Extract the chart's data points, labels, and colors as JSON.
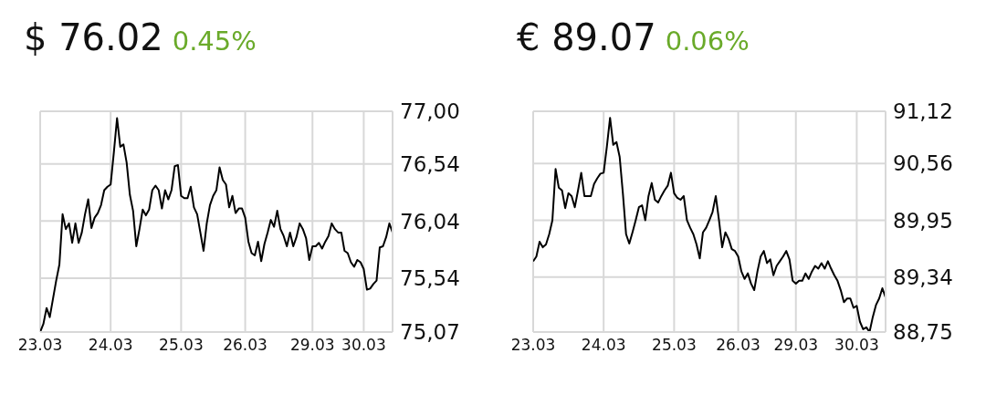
{
  "chart_data": [
    {
      "type": "line",
      "title": "$ 76.02",
      "subtitle": "0.45%",
      "grid": true,
      "categories": [
        "23.03",
        null,
        null,
        null,
        null,
        null,
        null,
        null,
        null,
        null,
        null,
        null,
        null,
        null,
        null,
        null,
        null,
        null,
        null,
        null,
        null,
        null,
        "24.03",
        null,
        null,
        null,
        null,
        null,
        null,
        null,
        null,
        null,
        null,
        null,
        null,
        null,
        null,
        null,
        null,
        null,
        null,
        null,
        null,
        null,
        "25.03",
        null,
        null,
        null,
        null,
        null,
        null,
        null,
        null,
        null,
        null,
        null,
        null,
        null,
        null,
        null,
        null,
        null,
        null,
        null,
        "26.03",
        null,
        null,
        null,
        null,
        null,
        null,
        null,
        null,
        null,
        null,
        null,
        null,
        null,
        null,
        null,
        null,
        null,
        null,
        null,
        null,
        "29.03",
        null,
        null,
        null,
        null,
        null,
        null,
        null,
        null,
        null,
        null,
        null,
        null,
        null,
        null,
        null,
        "30.03",
        null,
        null,
        null,
        null,
        null,
        null,
        null,
        null,
        null
      ],
      "ylim": [
        75.07,
        77.0
      ],
      "yticks": [
        {
          "value": 75.07,
          "label": "75,07"
        },
        {
          "value": 75.54,
          "label": "75,54"
        },
        {
          "value": 76.04,
          "label": "76,04"
        },
        {
          "value": 76.54,
          "label": "76,54"
        },
        {
          "value": 77.0,
          "label": "77,00"
        }
      ],
      "series": [
        {
          "color": "#000000",
          "values": [
            75.07,
            75.14,
            75.28,
            75.2,
            75.36,
            75.52,
            75.66,
            76.1,
            75.97,
            76.02,
            75.85,
            76.02,
            75.85,
            75.94,
            76.1,
            76.23,
            75.98,
            76.07,
            76.11,
            76.18,
            76.31,
            76.34,
            76.36,
            76.64,
            76.94,
            76.69,
            76.71,
            76.55,
            76.27,
            76.13,
            75.82,
            75.97,
            76.14,
            76.09,
            76.14,
            76.31,
            76.35,
            76.31,
            76.15,
            76.31,
            76.23,
            76.31,
            76.52,
            76.53,
            76.26,
            76.24,
            76.24,
            76.34,
            76.16,
            76.1,
            75.94,
            75.78,
            76.02,
            76.18,
            76.26,
            76.31,
            76.51,
            76.4,
            76.36,
            76.16,
            76.26,
            76.11,
            76.15,
            76.15,
            76.07,
            75.86,
            75.76,
            75.74,
            75.86,
            75.69,
            75.84,
            75.94,
            76.05,
            75.99,
            76.13,
            75.97,
            75.91,
            75.82,
            75.94,
            75.82,
            75.9,
            76.02,
            75.97,
            75.89,
            75.7,
            75.82,
            75.82,
            75.85,
            75.8,
            75.86,
            75.91,
            76.02,
            75.97,
            75.94,
            75.94,
            75.78,
            75.76,
            75.68,
            75.64,
            75.7,
            75.68,
            75.62,
            75.44,
            75.45,
            75.49,
            75.52,
            75.81,
            75.82,
            75.9,
            76.02,
            75.94
          ]
        }
      ]
    },
    {
      "type": "line",
      "title": "€ 89.07",
      "subtitle": "0.06%",
      "grid": true,
      "categories": [
        "23.03",
        null,
        null,
        null,
        null,
        null,
        null,
        null,
        null,
        null,
        null,
        null,
        null,
        null,
        null,
        null,
        null,
        null,
        null,
        null,
        null,
        null,
        "24.03",
        null,
        null,
        null,
        null,
        null,
        null,
        null,
        null,
        null,
        null,
        null,
        null,
        null,
        null,
        null,
        null,
        null,
        null,
        null,
        null,
        null,
        "25.03",
        null,
        null,
        null,
        null,
        null,
        null,
        null,
        null,
        null,
        null,
        null,
        null,
        null,
        null,
        null,
        null,
        null,
        null,
        null,
        "26.03",
        null,
        null,
        null,
        null,
        null,
        null,
        null,
        null,
        null,
        null,
        null,
        null,
        null,
        null,
        null,
        null,
        null,
        "29.03",
        null,
        null,
        null,
        null,
        null,
        null,
        null,
        null,
        null,
        null,
        null,
        null,
        null,
        null,
        null,
        null,
        null,
        null,
        "30.03",
        null,
        null,
        null,
        null,
        null,
        null,
        null,
        null,
        null
      ],
      "ylim": [
        88.75,
        91.12
      ],
      "yticks": [
        {
          "value": 88.75,
          "label": "88,75"
        },
        {
          "value": 89.34,
          "label": "89,34"
        },
        {
          "value": 89.95,
          "label": "89,95"
        },
        {
          "value": 90.56,
          "label": "90,56"
        },
        {
          "value": 91.12,
          "label": "91,12"
        }
      ],
      "series": [
        {
          "color": "#000000",
          "values": [
            89.51,
            89.56,
            89.72,
            89.66,
            89.69,
            89.8,
            89.95,
            90.5,
            90.3,
            90.27,
            90.08,
            90.24,
            90.21,
            90.09,
            90.27,
            90.46,
            90.21,
            90.21,
            90.21,
            90.34,
            90.4,
            90.45,
            90.46,
            90.74,
            91.05,
            90.76,
            90.79,
            90.63,
            90.24,
            89.8,
            89.7,
            89.82,
            89.95,
            90.09,
            90.11,
            89.95,
            90.21,
            90.35,
            90.17,
            90.14,
            90.21,
            90.27,
            90.32,
            90.46,
            90.24,
            90.19,
            90.17,
            90.21,
            89.95,
            89.87,
            89.8,
            89.69,
            89.54,
            89.82,
            89.87,
            89.95,
            90.04,
            90.21,
            89.95,
            89.66,
            89.82,
            89.75,
            89.64,
            89.62,
            89.56,
            89.4,
            89.32,
            89.38,
            89.27,
            89.2,
            89.4,
            89.56,
            89.62,
            89.49,
            89.53,
            89.36,
            89.46,
            89.51,
            89.56,
            89.62,
            89.53,
            89.3,
            89.27,
            89.3,
            89.3,
            89.38,
            89.32,
            89.4,
            89.46,
            89.43,
            89.49,
            89.43,
            89.51,
            89.43,
            89.36,
            89.3,
            89.2,
            89.07,
            89.11,
            89.11,
            89.01,
            89.03,
            88.86,
            88.78,
            88.8,
            88.75,
            88.91,
            89.04,
            89.11,
            89.22,
            89.12
          ]
        }
      ]
    }
  ]
}
